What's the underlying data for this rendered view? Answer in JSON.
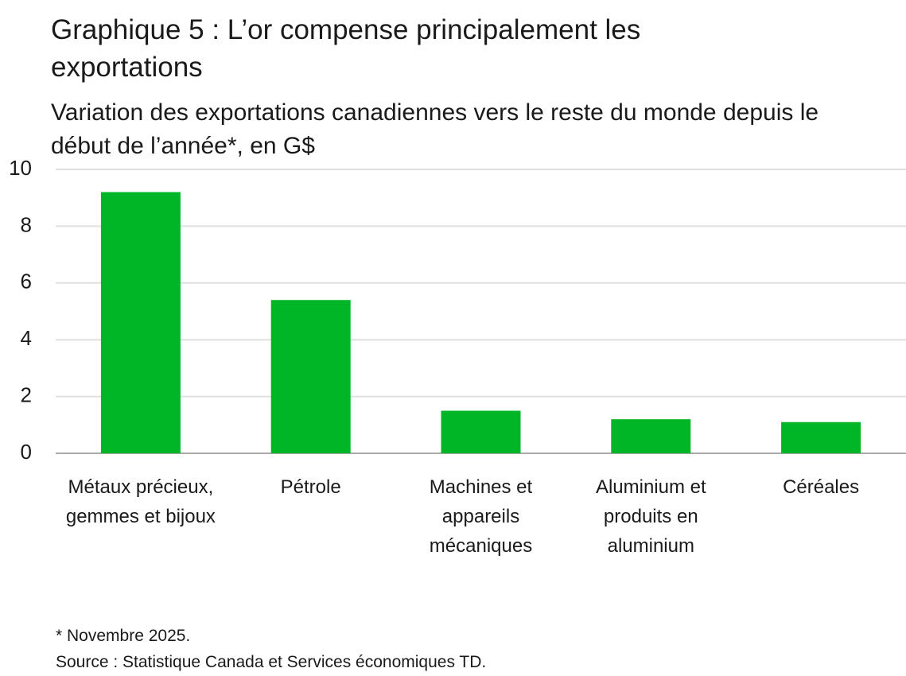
{
  "chart_data": {
    "type": "bar",
    "title": "Graphique 5 : L’or compense principalement les exportations",
    "subtitle": "Variation des exportations canadiennes vers le reste du monde depuis le début de l’année*, en G$",
    "categories": [
      "Métaux précieux, gemmes et bijoux",
      "Pétrole",
      "Machines et appareils mécaniques",
      "Aluminium et produits en aluminium",
      "Céréales"
    ],
    "values": [
      9.2,
      5.4,
      1.5,
      1.2,
      1.1
    ],
    "color": "#00b627",
    "ylim": [
      0,
      10
    ],
    "yticks": [
      0,
      2,
      4,
      6,
      8,
      10
    ],
    "grid": true,
    "notes": [
      "* Novembre 2025.",
      "Source : Statistique Canada et Services économiques TD."
    ]
  }
}
